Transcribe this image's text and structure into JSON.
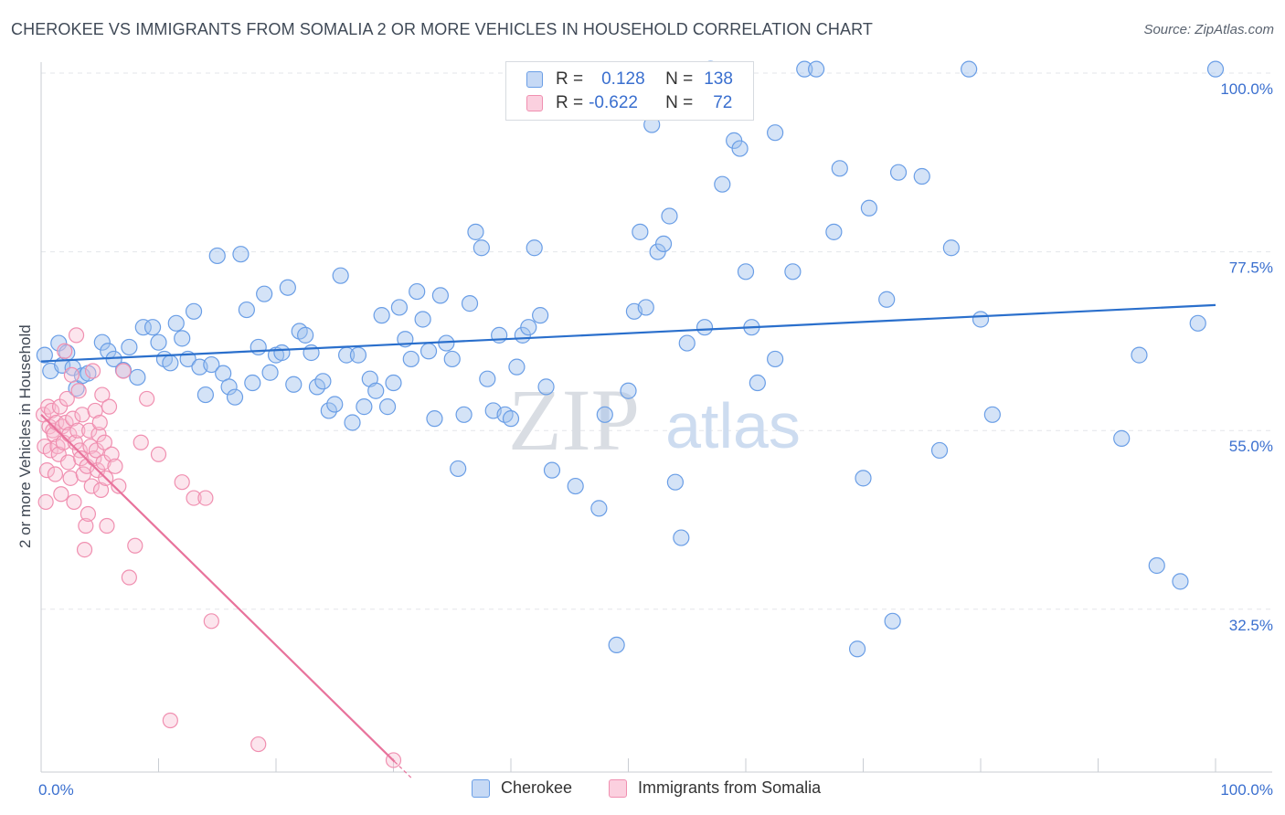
{
  "title": "CHEROKEE VS IMMIGRANTS FROM SOMALIA 2 OR MORE VEHICLES IN HOUSEHOLD CORRELATION CHART",
  "source": "Source: ZipAtlas.com",
  "watermark": {
    "zip": "ZIP",
    "atlas": "atlas"
  },
  "legend_top": {
    "rows": [
      {
        "r_label": "R =",
        "r_value": "0.128",
        "n_label": "N =",
        "n_value": "138"
      },
      {
        "r_label": "R =",
        "r_value": "-0.622",
        "n_label": "N =",
        "n_value": "72"
      }
    ]
  },
  "chart_data": {
    "type": "scatter",
    "title": "CHEROKEE VS IMMIGRANTS FROM SOMALIA 2 OR MORE VEHICLES IN HOUSEHOLD CORRELATION CHART",
    "xlabel": "",
    "ylabel": "2 or more Vehicles in Household",
    "xlim": [
      0,
      100
    ],
    "ylim": [
      12,
      102
    ],
    "x_tick_labels": [
      "0.0%",
      "100.0%"
    ],
    "y_ticks": [
      32.5,
      55.0,
      77.5,
      100.0
    ],
    "y_tick_labels": [
      "32.5%",
      "55.0%",
      "77.5%",
      "100.0%"
    ],
    "grid": true,
    "legend_placement": "top-center",
    "colors": {
      "cherokee": "#6a9ee6",
      "somalia": "#f08fb0",
      "cherokee_line": "#2a6fcc",
      "somalia_line": "#e8739c"
    },
    "series": [
      {
        "name": "Cherokee",
        "trend": {
          "x": [
            0,
            100
          ],
          "y": [
            63.7,
            70.8
          ]
        },
        "points": [
          [
            0.3,
            64.5
          ],
          [
            0.8,
            62.5
          ],
          [
            1.5,
            66.0
          ],
          [
            1.8,
            63.2
          ],
          [
            2.2,
            64.8
          ],
          [
            2.7,
            62.9
          ],
          [
            3.0,
            60.3
          ],
          [
            3.5,
            61.9
          ],
          [
            4.0,
            62.2
          ],
          [
            5.2,
            66.1
          ],
          [
            5.7,
            65.0
          ],
          [
            6.2,
            64.0
          ],
          [
            7.0,
            62.6
          ],
          [
            7.5,
            65.5
          ],
          [
            8.2,
            61.7
          ],
          [
            8.7,
            68.0
          ],
          [
            9.5,
            68.0
          ],
          [
            10.0,
            66.1
          ],
          [
            10.5,
            64.0
          ],
          [
            11.0,
            63.5
          ],
          [
            11.5,
            68.5
          ],
          [
            12.0,
            66.6
          ],
          [
            12.5,
            64.0
          ],
          [
            13.0,
            70.0
          ],
          [
            13.5,
            63.0
          ],
          [
            14.0,
            59.5
          ],
          [
            14.5,
            63.3
          ],
          [
            15.0,
            77.0
          ],
          [
            15.5,
            62.2
          ],
          [
            16.0,
            60.5
          ],
          [
            16.5,
            59.2
          ],
          [
            17.0,
            77.2
          ],
          [
            17.5,
            70.2
          ],
          [
            18.0,
            61.0
          ],
          [
            18.5,
            65.5
          ],
          [
            19.0,
            72.2
          ],
          [
            19.5,
            62.3
          ],
          [
            20.0,
            64.5
          ],
          [
            20.5,
            64.8
          ],
          [
            21.0,
            73.0
          ],
          [
            21.5,
            60.8
          ],
          [
            22.0,
            67.5
          ],
          [
            22.5,
            67.0
          ],
          [
            23.0,
            64.8
          ],
          [
            23.5,
            60.5
          ],
          [
            24.0,
            61.2
          ],
          [
            24.5,
            57.5
          ],
          [
            25.0,
            58.3
          ],
          [
            25.5,
            74.5
          ],
          [
            26.0,
            64.5
          ],
          [
            26.5,
            56.0
          ],
          [
            27.0,
            64.5
          ],
          [
            27.5,
            58.0
          ],
          [
            28.0,
            61.5
          ],
          [
            28.5,
            60.0
          ],
          [
            29.0,
            69.5
          ],
          [
            29.5,
            58.0
          ],
          [
            30.0,
            61.0
          ],
          [
            30.5,
            70.5
          ],
          [
            31.0,
            66.5
          ],
          [
            31.5,
            64.0
          ],
          [
            32.0,
            72.5
          ],
          [
            32.5,
            69.0
          ],
          [
            33.0,
            65.0
          ],
          [
            33.5,
            56.5
          ],
          [
            34.0,
            72.0
          ],
          [
            34.5,
            66.0
          ],
          [
            35.0,
            64.0
          ],
          [
            35.5,
            50.2
          ],
          [
            36.0,
            57.0
          ],
          [
            36.5,
            71.0
          ],
          [
            37.0,
            80.0
          ],
          [
            37.5,
            78.0
          ],
          [
            38.0,
            61.5
          ],
          [
            38.5,
            57.5
          ],
          [
            39.0,
            67.0
          ],
          [
            39.5,
            57.0
          ],
          [
            40.0,
            56.5
          ],
          [
            40.5,
            63.0
          ],
          [
            41.0,
            67.0
          ],
          [
            41.5,
            68.0
          ],
          [
            42.0,
            78.0
          ],
          [
            42.5,
            69.5
          ],
          [
            43.0,
            60.5
          ],
          [
            43.5,
            50.0
          ],
          [
            45.5,
            48.0
          ],
          [
            47.5,
            45.2
          ],
          [
            48.0,
            57.0
          ],
          [
            49.0,
            28.0
          ],
          [
            50.0,
            60.0
          ],
          [
            50.5,
            70.0
          ],
          [
            51.0,
            80.0
          ],
          [
            51.5,
            70.5
          ],
          [
            52.0,
            93.5
          ],
          [
            52.5,
            77.5
          ],
          [
            53.0,
            78.5
          ],
          [
            53.5,
            82.0
          ],
          [
            54.0,
            48.5
          ],
          [
            54.5,
            41.5
          ],
          [
            55.0,
            66.0
          ],
          [
            56.5,
            68.0
          ],
          [
            57.0,
            100.5
          ],
          [
            58.0,
            86.0
          ],
          [
            59.0,
            91.5
          ],
          [
            59.5,
            90.5
          ],
          [
            60.0,
            75.0
          ],
          [
            60.5,
            68.0
          ],
          [
            61.0,
            61.0
          ],
          [
            62.5,
            92.5
          ],
          [
            62.5,
            64.0
          ],
          [
            64.0,
            75.0
          ],
          [
            65.0,
            100.5
          ],
          [
            66.0,
            100.5
          ],
          [
            67.5,
            80.0
          ],
          [
            68.0,
            88.0
          ],
          [
            69.5,
            27.5
          ],
          [
            70.0,
            49.0
          ],
          [
            70.5,
            83.0
          ],
          [
            72.0,
            71.5
          ],
          [
            72.5,
            31.0
          ],
          [
            73.0,
            87.5
          ],
          [
            75.0,
            87.0
          ],
          [
            76.5,
            52.5
          ],
          [
            77.5,
            78.0
          ],
          [
            79.0,
            100.5
          ],
          [
            80.0,
            69.0
          ],
          [
            81.0,
            57.0
          ],
          [
            92.0,
            54.0
          ],
          [
            93.5,
            64.5
          ],
          [
            95.0,
            38.0
          ],
          [
            97.0,
            36.0
          ],
          [
            98.5,
            68.5
          ],
          [
            100.0,
            100.5
          ]
        ]
      },
      {
        "name": "Immigrants from Somalia",
        "trend": {
          "x": [
            0,
            30.1
          ],
          "y": [
            57.0,
            13.3
          ]
        },
        "points": [
          [
            0.2,
            57.0
          ],
          [
            0.3,
            53.0
          ],
          [
            0.4,
            46.0
          ],
          [
            0.5,
            50.0
          ],
          [
            0.6,
            58.0
          ],
          [
            0.7,
            55.5
          ],
          [
            0.8,
            52.5
          ],
          [
            0.9,
            57.5
          ],
          [
            1.0,
            55.0
          ],
          [
            1.1,
            54.5
          ],
          [
            1.2,
            49.5
          ],
          [
            1.3,
            56.0
          ],
          [
            1.4,
            53.0
          ],
          [
            1.5,
            52.0
          ],
          [
            1.6,
            58.0
          ],
          [
            1.7,
            47.0
          ],
          [
            1.8,
            55.5
          ],
          [
            1.9,
            53.5
          ],
          [
            2.0,
            65.0
          ],
          [
            2.1,
            56.0
          ],
          [
            2.2,
            59.0
          ],
          [
            2.3,
            51.0
          ],
          [
            2.4,
            54.5
          ],
          [
            2.5,
            49.0
          ],
          [
            2.6,
            62.0
          ],
          [
            2.7,
            56.5
          ],
          [
            2.8,
            46.0
          ],
          [
            2.9,
            53.5
          ],
          [
            3.0,
            67.0
          ],
          [
            3.1,
            55.0
          ],
          [
            3.2,
            60.0
          ],
          [
            3.3,
            52.5
          ],
          [
            3.4,
            51.5
          ],
          [
            3.5,
            57.0
          ],
          [
            3.6,
            49.5
          ],
          [
            3.7,
            40.0
          ],
          [
            3.8,
            43.0
          ],
          [
            3.9,
            50.5
          ],
          [
            4.0,
            44.5
          ],
          [
            4.1,
            55.0
          ],
          [
            4.2,
            53.0
          ],
          [
            4.3,
            48.0
          ],
          [
            4.4,
            62.5
          ],
          [
            4.5,
            51.5
          ],
          [
            4.6,
            57.5
          ],
          [
            4.7,
            52.5
          ],
          [
            4.8,
            50.0
          ],
          [
            4.9,
            54.5
          ],
          [
            5.0,
            56.0
          ],
          [
            5.1,
            47.5
          ],
          [
            5.2,
            59.5
          ],
          [
            5.3,
            51.0
          ],
          [
            5.4,
            53.5
          ],
          [
            5.5,
            49.0
          ],
          [
            5.6,
            43.0
          ],
          [
            5.8,
            58.0
          ],
          [
            6.0,
            52.0
          ],
          [
            6.3,
            50.5
          ],
          [
            6.6,
            48.0
          ],
          [
            7.0,
            62.5
          ],
          [
            7.5,
            36.5
          ],
          [
            8.0,
            40.5
          ],
          [
            8.5,
            53.5
          ],
          [
            9.0,
            59.0
          ],
          [
            10.0,
            52.0
          ],
          [
            11.0,
            18.5
          ],
          [
            12.0,
            48.5
          ],
          [
            13.0,
            46.5
          ],
          [
            14.0,
            46.5
          ],
          [
            14.5,
            31.0
          ],
          [
            18.5,
            15.5
          ],
          [
            30.0,
            13.5
          ]
        ]
      }
    ]
  },
  "bottom_legend": [
    {
      "label": "Cherokee"
    },
    {
      "label": "Immigrants from Somalia"
    }
  ]
}
